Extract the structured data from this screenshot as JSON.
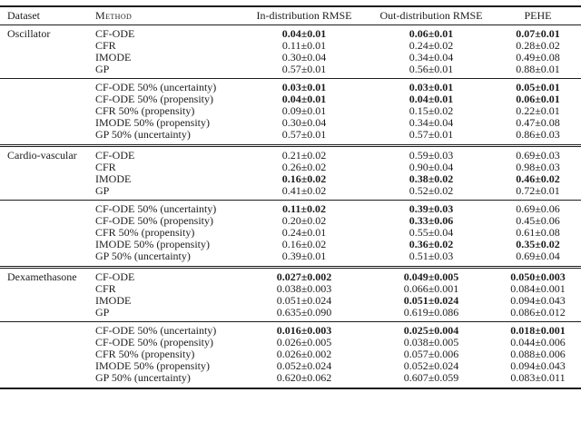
{
  "page": {
    "background_color": "#ffffff",
    "text_color": "#1c1c1c",
    "rule_color": "#1c1c1c"
  },
  "table": {
    "columns": [
      "Dataset",
      "Method",
      "In-distribution RMSE",
      "Out-distribution RMSE",
      "PEHE"
    ],
    "sections": [
      {
        "dataset": "Oscillator",
        "groups": [
          [
            {
              "method": "CF-ODE",
              "values": [
                "0.04±0.01",
                "0.06±0.01",
                "0.07±0.01"
              ],
              "bold": [
                true,
                true,
                true
              ]
            },
            {
              "method": "CFR",
              "values": [
                "0.11±0.01",
                "0.24±0.02",
                "0.28±0.02"
              ],
              "bold": [
                false,
                false,
                false
              ]
            },
            {
              "method": "IMODE",
              "values": [
                "0.30±0.04",
                "0.34±0.04",
                "0.49±0.08"
              ],
              "bold": [
                false,
                false,
                false
              ]
            },
            {
              "method": "GP",
              "values": [
                "0.57±0.01",
                "0.56±0.01",
                "0.88±0.01"
              ],
              "bold": [
                false,
                false,
                false
              ]
            }
          ],
          [
            {
              "method": "CF-ODE 50% (uncertainty)",
              "values": [
                "0.03±0.01",
                "0.03±0.01",
                "0.05±0.01"
              ],
              "bold": [
                true,
                true,
                true
              ]
            },
            {
              "method": "CF-ODE 50% (propensity)",
              "values": [
                "0.04±0.01",
                "0.04±0.01",
                "0.06±0.01"
              ],
              "bold": [
                true,
                true,
                true
              ]
            },
            {
              "method": "CFR 50% (propensity)",
              "values": [
                "0.09±0.01",
                "0.15±0.02",
                "0.22±0.01"
              ],
              "bold": [
                false,
                false,
                false
              ]
            },
            {
              "method": "IMODE 50% (propensity)",
              "values": [
                "0.30±0.04",
                "0.34±0.04",
                "0.47±0.08"
              ],
              "bold": [
                false,
                false,
                false
              ]
            },
            {
              "method": "GP 50% (uncertainty)",
              "values": [
                "0.57±0.01",
                "0.57±0.01",
                "0.86±0.03"
              ],
              "bold": [
                false,
                false,
                false
              ]
            }
          ]
        ]
      },
      {
        "dataset": "Cardio-vascular",
        "groups": [
          [
            {
              "method": "CF-ODE",
              "values": [
                "0.21±0.02",
                "0.59±0.03",
                "0.69±0.03"
              ],
              "bold": [
                false,
                false,
                false
              ]
            },
            {
              "method": "CFR",
              "values": [
                "0.26±0.02",
                "0.90±0.04",
                "0.98±0.03"
              ],
              "bold": [
                false,
                false,
                false
              ]
            },
            {
              "method": "IMODE",
              "values": [
                "0.16±0.02",
                "0.38±0.02",
                "0.46±0.02"
              ],
              "bold": [
                true,
                true,
                true
              ]
            },
            {
              "method": "GP",
              "values": [
                "0.41±0.02",
                "0.52±0.02",
                "0.72±0.01"
              ],
              "bold": [
                false,
                false,
                false
              ]
            }
          ],
          [
            {
              "method": "CF-ODE 50% (uncertainty)",
              "values": [
                "0.11±0.02",
                "0.39±0.03",
                "0.69±0.06"
              ],
              "bold": [
                true,
                true,
                false
              ]
            },
            {
              "method": "CF-ODE 50% (propensity)",
              "values": [
                "0.20±0.02",
                "0.33±0.06",
                "0.45±0.06"
              ],
              "bold": [
                false,
                true,
                false
              ]
            },
            {
              "method": "CFR 50% (propensity)",
              "values": [
                "0.24±0.01",
                "0.55±0.04",
                "0.61±0.08"
              ],
              "bold": [
                false,
                false,
                false
              ]
            },
            {
              "method": "IMODE 50% (propensity)",
              "values": [
                "0.16±0.02",
                "0.36±0.02",
                "0.35±0.02"
              ],
              "bold": [
                false,
                true,
                true
              ]
            },
            {
              "method": "GP 50% (uncertainty)",
              "values": [
                "0.39±0.01",
                "0.51±0.03",
                "0.69±0.04"
              ],
              "bold": [
                false,
                false,
                false
              ]
            }
          ]
        ]
      },
      {
        "dataset": "Dexamethasone",
        "groups": [
          [
            {
              "method": "CF-ODE",
              "values": [
                "0.027±0.002",
                "0.049±0.005",
                "0.050±0.003"
              ],
              "bold": [
                true,
                true,
                true
              ]
            },
            {
              "method": "CFR",
              "values": [
                "0.038±0.003",
                "0.066±0.001",
                "0.084±0.001"
              ],
              "bold": [
                false,
                false,
                false
              ]
            },
            {
              "method": "IMODE",
              "values": [
                "0.051±0.024",
                "0.051±0.024",
                "0.094±0.043"
              ],
              "bold": [
                false,
                true,
                false
              ]
            },
            {
              "method": "GP",
              "values": [
                "0.635±0.090",
                "0.619±0.086",
                "0.086±0.012"
              ],
              "bold": [
                false,
                false,
                false
              ]
            }
          ],
          [
            {
              "method": "CF-ODE 50% (uncertainty)",
              "values": [
                "0.016±0.003",
                "0.025±0.004",
                "0.018±0.001"
              ],
              "bold": [
                true,
                true,
                true
              ]
            },
            {
              "method": "CF-ODE 50% (propensity)",
              "values": [
                "0.026±0.005",
                "0.038±0.005",
                "0.044±0.006"
              ],
              "bold": [
                false,
                false,
                false
              ]
            },
            {
              "method": "CFR 50% (propensity)",
              "values": [
                "0.026±0.002",
                "0.057±0.006",
                "0.088±0.006"
              ],
              "bold": [
                false,
                false,
                false
              ]
            },
            {
              "method": "IMODE 50% (propensity)",
              "values": [
                "0.052±0.024",
                "0.052±0.024",
                "0.094±0.043"
              ],
              "bold": [
                false,
                false,
                false
              ]
            },
            {
              "method": "GP 50% (uncertainty)",
              "values": [
                "0.620±0.062",
                "0.607±0.059",
                "0.083±0.011"
              ],
              "bold": [
                false,
                false,
                false
              ]
            }
          ]
        ]
      }
    ]
  }
}
